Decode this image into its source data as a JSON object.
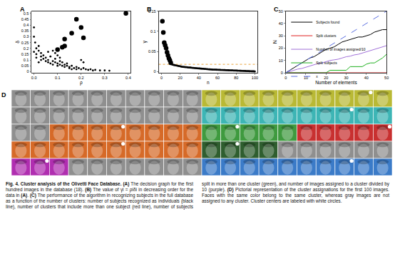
{
  "chart_data": [
    {
      "type": "scatter",
      "panel": "A",
      "x_label": "ρ",
      "y_label": "δ",
      "xlim": [
        -0.01,
        0.41
      ],
      "ylim": [
        -0.01,
        0.52
      ],
      "xticks": [
        {
          "value": 0,
          "label": "0.0"
        },
        0.1,
        0.2,
        0.3,
        0.4
      ],
      "yticks": [
        0,
        0.05,
        0.1,
        0.15,
        0.2,
        0.25,
        0.3,
        0.35,
        0.4,
        0.45,
        0.5
      ],
      "series": [
        {
          "marker": "large",
          "color": "#000000",
          "x": [
            0.39,
            0.18,
            0.2,
            0.16,
            0.21,
            0.13,
            0.13,
            0.12,
            0.1
          ],
          "values": [
            0.5,
            0.45,
            0.38,
            0.33,
            0.29,
            0.28,
            0.22,
            0.21,
            0.19
          ]
        },
        {
          "marker": "small",
          "color": "#000000",
          "x": [
            0.0,
            0.0,
            0.005,
            0.01,
            0.0,
            0.01,
            0.02,
            0.02,
            0.03,
            0.03,
            0.04,
            0.04,
            0.05,
            0.05,
            0.06,
            0.06,
            0.07,
            0.07,
            0.08,
            0.08,
            0.09,
            0.09,
            0.1,
            0.1,
            0.11,
            0.11,
            0.12,
            0.12,
            0.13,
            0.13,
            0.14,
            0.14,
            0.15,
            0.15,
            0.16,
            0.16,
            0.17,
            0.18,
            0.18,
            0.19,
            0.2,
            0.21,
            0.22,
            0.23,
            0.24,
            0.25,
            0.26,
            0.28,
            0.3,
            0.32,
            0.2,
            0.21,
            0.06,
            0.08,
            0.1,
            0.03,
            0.02,
            0.09,
            0.11,
            0.01
          ],
          "values": [
            0.38,
            0.3,
            0.25,
            0.2,
            0.17,
            0.15,
            0.22,
            0.18,
            0.16,
            0.13,
            0.14,
            0.11,
            0.12,
            0.09,
            0.1,
            0.08,
            0.13,
            0.07,
            0.09,
            0.06,
            0.08,
            0.11,
            0.07,
            0.05,
            0.06,
            0.09,
            0.08,
            0.05,
            0.06,
            0.04,
            0.05,
            0.07,
            0.04,
            0.03,
            0.05,
            0.02,
            0.03,
            0.04,
            0.02,
            0.03,
            0.02,
            0.03,
            0.02,
            0.015,
            0.02,
            0.01,
            0.015,
            0.01,
            0.01,
            0.008,
            0.1,
            0.08,
            0.17,
            0.18,
            0.14,
            0.1,
            0.08,
            0.16,
            0.12,
            0.12
          ]
        }
      ]
    },
    {
      "type": "scatter",
      "panel": "B",
      "x_label": "n",
      "y_label": "γ",
      "xlim": [
        -3,
        103
      ],
      "ylim": [
        -0.003,
        0.15
      ],
      "xticks": [
        0,
        20,
        40,
        60,
        80,
        100
      ],
      "yticks": [
        0,
        0.05,
        0.1,
        0.15
      ],
      "threshold": 0.018,
      "threshold_color": "#e8a33a",
      "threshold_style": "dotted",
      "series": [
        {
          "marker": "large",
          "color": "#000000",
          "x": [
            1,
            2,
            3,
            4,
            5,
            6,
            7,
            8,
            9,
            10
          ],
          "values": [
            0.125,
            0.097,
            0.072,
            0.065,
            0.058,
            0.048,
            0.04,
            0.033,
            0.028,
            0.022
          ]
        },
        {
          "marker": "small",
          "color": "#000000",
          "x": [
            11,
            12,
            13,
            14,
            15,
            16,
            17,
            18,
            19,
            20,
            21,
            22,
            23,
            24,
            25,
            26,
            27,
            28,
            29,
            30,
            31,
            32,
            33,
            34,
            35,
            36,
            37,
            38,
            39,
            40,
            41,
            42,
            43,
            44,
            45,
            46,
            47,
            48,
            49,
            50,
            51,
            52,
            53,
            54,
            55,
            56,
            57,
            58,
            59,
            60,
            61,
            62,
            63,
            64,
            65,
            66,
            67,
            68,
            69,
            70,
            71,
            72,
            73,
            74,
            75,
            76,
            77,
            78,
            79,
            80,
            81,
            82,
            83,
            84,
            85,
            86,
            87,
            88,
            89,
            90,
            91,
            92,
            93,
            94,
            95,
            96,
            97,
            98,
            99,
            100
          ],
          "values": [
            0.018,
            0.017,
            0.0165,
            0.016,
            0.0155,
            0.015,
            0.0145,
            0.014,
            0.0135,
            0.013,
            0.0125,
            0.012,
            0.0118,
            0.0115,
            0.0112,
            0.011,
            0.0108,
            0.0105,
            0.0102,
            0.01,
            0.0098,
            0.0095,
            0.0093,
            0.009,
            0.0088,
            0.0086,
            0.0084,
            0.0082,
            0.008,
            0.0078,
            0.0076,
            0.0074,
            0.0072,
            0.007,
            0.0068,
            0.0066,
            0.0064,
            0.0062,
            0.006,
            0.0058,
            0.0056,
            0.0054,
            0.0052,
            0.005,
            0.0049,
            0.0048,
            0.0047,
            0.0046,
            0.0045,
            0.0044,
            0.0043,
            0.0042,
            0.0041,
            0.004,
            0.0039,
            0.0038,
            0.0037,
            0.0036,
            0.0035,
            0.0034,
            0.0033,
            0.0032,
            0.0031,
            0.003,
            0.0029,
            0.0028,
            0.0027,
            0.0026,
            0.0025,
            0.0024,
            0.0023,
            0.0022,
            0.0021,
            0.002,
            0.0019,
            0.0018,
            0.0017,
            0.0016,
            0.0015,
            0.0014,
            0.0013,
            0.0012,
            0.0011,
            0.001,
            0.0009,
            0.0008,
            0.0007,
            0.0006,
            0.0005,
            0.0004
          ]
        }
      ]
    },
    {
      "type": "line",
      "panel": "C",
      "x_label": "Number of elements",
      "y_label": "N",
      "xlim": [
        0,
        50
      ],
      "ylim": [
        0,
        50
      ],
      "xticks": [
        0,
        10,
        20,
        30,
        40,
        50
      ],
      "yticks": [
        0,
        10,
        20,
        30,
        40,
        50
      ],
      "legend": "upper left",
      "x": [
        0,
        2,
        4,
        6,
        8,
        10,
        12,
        14,
        16,
        18,
        20,
        22,
        24,
        26,
        28,
        30,
        32,
        34,
        36,
        38,
        40,
        42,
        44,
        46,
        48,
        50
      ],
      "series": [
        {
          "name": "Subjects found",
          "color": "#000000",
          "line_style": "solid",
          "values": [
            0,
            2,
            4,
            6,
            8,
            10,
            12,
            13,
            15,
            17,
            19,
            20,
            21,
            23,
            25,
            26,
            27,
            28,
            29,
            29,
            30,
            31,
            33,
            34,
            35,
            35
          ]
        },
        {
          "name": "Split clusters",
          "color": "#e02020",
          "line_style": "solid",
          "values": [
            0,
            0,
            0,
            0,
            0,
            0,
            0,
            0,
            0,
            0,
            0,
            0,
            0,
            0,
            0,
            0,
            0,
            0,
            0,
            0,
            0,
            0,
            0,
            0,
            0,
            0
          ]
        },
        {
          "name": "Number of images assigned/10",
          "color": "#a070d8",
          "line_style": "solid",
          "values": [
            0,
            1,
            2,
            3,
            3.5,
            4.5,
            5.5,
            6.5,
            7.5,
            8,
            9,
            10,
            10.5,
            11,
            12,
            13,
            13.5,
            14.5,
            15,
            16,
            17,
            18,
            19,
            20,
            21,
            22
          ]
        },
        {
          "name": "Split subjects",
          "color": "#20b020",
          "line_style": "solid",
          "values": [
            0,
            0,
            0,
            0,
            0,
            0,
            0,
            0,
            0,
            0,
            0,
            2,
            2,
            2,
            2,
            2,
            5,
            5,
            5,
            5,
            7,
            8,
            8,
            10,
            12,
            15
          ]
        },
        {
          "name": "x",
          "color": "#5a6ee0",
          "line_style": "dashed",
          "values": [
            0,
            2,
            4,
            6,
            8,
            10,
            12,
            14,
            16,
            18,
            20,
            22,
            24,
            26,
            28,
            30,
            32,
            34,
            36,
            38,
            40,
            42,
            44,
            46,
            48,
            50
          ]
        }
      ]
    }
  ],
  "face_grid": {
    "panel": "D",
    "rows": [
      [
        "#8f8f8f",
        "#8f8f8f",
        "#8f8f8f",
        "#8f8f8f",
        "#8f8f8f",
        "#8f8f8f",
        "#8f8f8f",
        "#8f8f8f",
        "#8f8f8f",
        "#8f8f8f",
        "#b9b935",
        "#b9b935",
        "#b9b935",
        "#b9b935",
        "#b9b935",
        "#b9b935",
        "#b9b935",
        "#b9b935",
        "#b9b935",
        "#b9b935"
      ],
      [
        "#8f8f8f",
        "#8f8f8f",
        "#8f8f8f",
        "#8f8f8f",
        "#8f8f8f",
        "#8f8f8f",
        "#8f8f8f",
        "#8f8f8f",
        "#8f8f8f",
        "#8f8f8f",
        "#3db5b5",
        "#3db5b5",
        "#3db5b5",
        "#3db5b5",
        "#3db5b5",
        "#3db5b5",
        "#3db5b5",
        "#3db5b5",
        "#3db5b5",
        "#3db5b5"
      ],
      [
        "#8f8f8f",
        "#8f8f8f",
        "#d66a28",
        "#d66a28",
        "#d66a28",
        "#d66a28",
        "#d66a28",
        "#d66a28",
        "#d66a28",
        "#d66a28",
        "#3f9a3f",
        "#3f9a3f",
        "#3f9a3f",
        "#3f9a3f",
        "#3f9a3f",
        "#c83030",
        "#c83030",
        "#c83030",
        "#c83030",
        "#c83030"
      ],
      [
        "#d66a28",
        "#d66a28",
        "#d66a28",
        "#d66a28",
        "#d66a28",
        "#d66a28",
        "#d66a28",
        "#d66a28",
        "#d66a28",
        "#d66a28",
        "#2f5e2f",
        "#2f5e2f",
        "#2f5e2f",
        "#2f5e2f",
        "#8f8f8f",
        "#8f8f8f",
        "#8f8f8f",
        "#8f8f8f",
        "#8f8f8f",
        "#8f8f8f"
      ],
      [
        "#b02eb0",
        "#b02eb0",
        "#b02eb0",
        "#8f8f8f",
        "#8f8f8f",
        "#8f8f8f",
        "#8f8f8f",
        "#8f8f8f",
        "#8f8f8f",
        "#8f8f8f",
        "#3b7bc8",
        "#3b7bc8",
        "#3b7bc8",
        "#3b7bc8",
        "#3b7bc8",
        "#3b7bc8",
        "#3b7bc8",
        "#3b7bc8",
        "#3b7bc8",
        "#3b7bc8"
      ]
    ],
    "centers": [
      [
        0,
        18
      ],
      [
        1,
        17
      ],
      [
        2,
        5
      ],
      [
        2,
        11
      ],
      [
        2,
        19
      ],
      [
        3,
        5
      ],
      [
        3,
        11
      ],
      [
        4,
        1
      ],
      [
        4,
        17
      ]
    ]
  },
  "caption": {
    "title": "Fig. 4. Cluster analysis of the Olivetti Face Database.",
    "text": "(A) The decision graph for the first hundred images in the database (18). (B) The value of γi = ρiδi in decreasing order for the data in (A). (C) The performance of the algorithm in recognizing subjects in the full database as a function of the number of clusters: number of subjects recognized as individuals (black line), number of clusters that include more than one subject (red line), number of subjects split in more than one cluster (green), and number of images assigned to a cluster divided by 10 (purple). (D) Pictorial representation of the cluster assignations for the first 100 images. Faces with the same color belong to the same cluster, whereas gray images are not assigned to any cluster. Cluster centers are labeled with white circles."
  }
}
